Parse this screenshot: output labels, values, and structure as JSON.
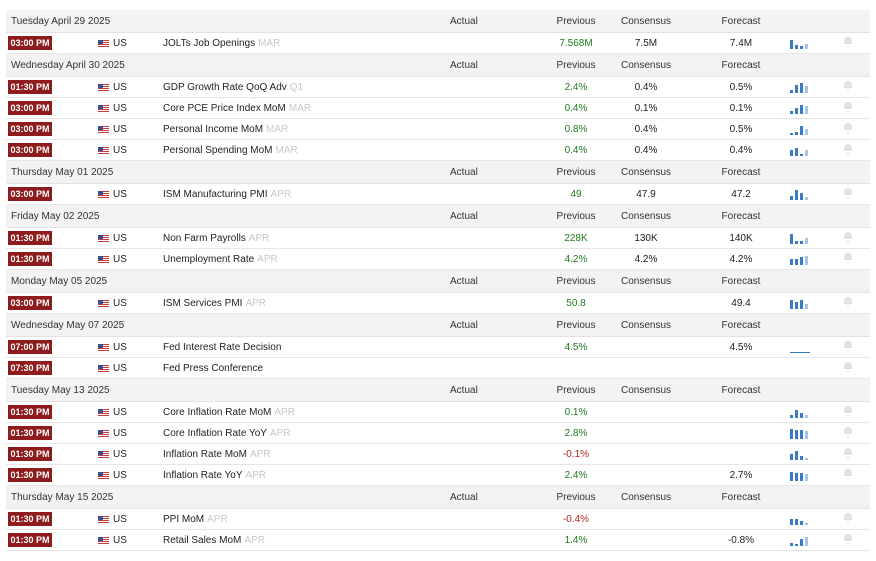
{
  "columns": {
    "actual": "Actual",
    "previous": "Previous",
    "consensus": "Consensus",
    "forecast": "Forecast"
  },
  "colors": {
    "time_badge": "#8e1c1c",
    "positive": "#1f7a1f",
    "negative": "#b22222",
    "sparkline": "#3b7ac4",
    "header_bg": "#f3f3f3"
  },
  "icons": {
    "flag": "us-flag-icon",
    "sparkline": "sparkline-chart-icon",
    "alert": "bell-icon"
  },
  "groups": [
    {
      "date": "Tuesday April 29 2025",
      "events": [
        {
          "time": "03:00 PM",
          "country": "US",
          "event": "JOLTs Job Openings",
          "period": "MAR",
          "actual": "",
          "previous": "7.568M",
          "previous_tone": "pos",
          "consensus": "7.5M",
          "forecast": "7.4M",
          "spark": [
            0.85,
            0.35,
            0.25,
            0.45
          ]
        }
      ]
    },
    {
      "date": "Wednesday April 30 2025",
      "events": [
        {
          "time": "01:30 PM",
          "country": "US",
          "event": "GDP Growth Rate QoQ Adv",
          "period": "Q1",
          "actual": "",
          "previous": "2.4%",
          "previous_tone": "pos",
          "consensus": "0.4%",
          "forecast": "0.5%",
          "spark": [
            0.3,
            0.75,
            0.9,
            0.6
          ]
        },
        {
          "time": "03:00 PM",
          "country": "US",
          "event": "Core PCE Price Index MoM",
          "period": "MAR",
          "actual": "",
          "previous": "0.4%",
          "previous_tone": "pos",
          "consensus": "0.1%",
          "forecast": "0.1%",
          "spark": [
            0.3,
            0.55,
            0.8,
            0.75
          ]
        },
        {
          "time": "03:00 PM",
          "country": "US",
          "event": "Personal Income MoM",
          "period": "MAR",
          "actual": "",
          "previous": "0.8%",
          "previous_tone": "pos",
          "consensus": "0.4%",
          "forecast": "0.5%",
          "spark": [
            0.2,
            0.3,
            0.85,
            0.5
          ]
        },
        {
          "time": "03:00 PM",
          "country": "US",
          "event": "Personal Spending MoM",
          "period": "MAR",
          "actual": "",
          "previous": "0.4%",
          "previous_tone": "pos",
          "consensus": "0.4%",
          "forecast": "0.4%",
          "spark": [
            0.5,
            0.7,
            0.15,
            0.5
          ]
        }
      ]
    },
    {
      "date": "Thursday May 01 2025",
      "events": [
        {
          "time": "03:00 PM",
          "country": "US",
          "event": "ISM Manufacturing PMI",
          "period": "APR",
          "actual": "",
          "previous": "49",
          "previous_tone": "pos",
          "consensus": "47.9",
          "forecast": "47.2",
          "spark": [
            0.4,
            0.9,
            0.6,
            0.3
          ]
        }
      ]
    },
    {
      "date": "Friday May 02 2025",
      "events": [
        {
          "time": "01:30 PM",
          "country": "US",
          "event": "Non Farm Payrolls",
          "period": "APR",
          "actual": "",
          "previous": "228K",
          "previous_tone": "pos",
          "consensus": "130K",
          "forecast": "140K",
          "spark": [
            0.9,
            0.25,
            0.3,
            0.55
          ]
        },
        {
          "time": "01:30 PM",
          "country": "US",
          "event": "Unemployment Rate",
          "period": "APR",
          "actual": "",
          "previous": "4.2%",
          "previous_tone": "pos",
          "consensus": "4.2%",
          "forecast": "4.2%",
          "spark": [
            0.5,
            0.55,
            0.7,
            0.8
          ]
        }
      ]
    },
    {
      "date": "Monday May 05 2025",
      "events": [
        {
          "time": "03:00 PM",
          "country": "US",
          "event": "ISM Services PMI",
          "period": "APR",
          "actual": "",
          "previous": "50.8",
          "previous_tone": "pos",
          "consensus": "",
          "forecast": "49.4",
          "spark": [
            0.85,
            0.65,
            0.8,
            0.45
          ]
        }
      ]
    },
    {
      "date": "Wednesday May 07 2025",
      "events": [
        {
          "time": "07:00 PM",
          "country": "US",
          "event": "Fed Interest Rate Decision",
          "period": "",
          "actual": "",
          "previous": "4.5%",
          "previous_tone": "pos",
          "consensus": "",
          "forecast": "4.5%",
          "spark": [
            0.08,
            0.08,
            0.08,
            0.08
          ]
        },
        {
          "time": "07:30 PM",
          "country": "US",
          "event": "Fed Press Conference",
          "period": "",
          "actual": "",
          "previous": "",
          "previous_tone": "pos",
          "consensus": "",
          "forecast": "",
          "spark": []
        }
      ]
    },
    {
      "date": "Tuesday May 13 2025",
      "events": [
        {
          "time": "01:30 PM",
          "country": "US",
          "event": "Core Inflation Rate MoM",
          "period": "APR",
          "actual": "",
          "previous": "0.1%",
          "previous_tone": "pos",
          "consensus": "",
          "forecast": "",
          "spark": [
            0.3,
            0.7,
            0.45,
            0.25
          ]
        },
        {
          "time": "01:30 PM",
          "country": "US",
          "event": "Core Inflation Rate YoY",
          "period": "APR",
          "actual": "",
          "previous": "2.8%",
          "previous_tone": "pos",
          "consensus": "",
          "forecast": "",
          "spark": [
            0.9,
            0.85,
            0.8,
            0.75
          ]
        },
        {
          "time": "01:30 PM",
          "country": "US",
          "event": "Inflation Rate MoM",
          "period": "APR",
          "actual": "",
          "previous": "-0.1%",
          "previous_tone": "neg",
          "consensus": "",
          "forecast": "",
          "spark": [
            0.55,
            0.8,
            0.35,
            0.2
          ]
        },
        {
          "time": "01:30 PM",
          "country": "US",
          "event": "Inflation Rate YoY",
          "period": "APR",
          "actual": "",
          "previous": "2.4%",
          "previous_tone": "pos",
          "consensus": "",
          "forecast": "2.7%",
          "spark": [
            0.85,
            0.75,
            0.7,
            0.65
          ]
        }
      ]
    },
    {
      "date": "Thursday May 15 2025",
      "events": [
        {
          "time": "01:30 PM",
          "country": "US",
          "event": "PPI MoM",
          "period": "APR",
          "actual": "",
          "previous": "-0.4%",
          "previous_tone": "neg",
          "consensus": "",
          "forecast": "",
          "spark": [
            0.55,
            0.5,
            0.4,
            0.2
          ]
        },
        {
          "time": "01:30 PM",
          "country": "US",
          "event": "Retail Sales MoM",
          "period": "APR",
          "actual": "",
          "previous": "1.4%",
          "previous_tone": "pos",
          "consensus": "",
          "forecast": "-0.8%",
          "spark": [
            0.3,
            0.15,
            0.6,
            0.8
          ]
        }
      ]
    }
  ]
}
